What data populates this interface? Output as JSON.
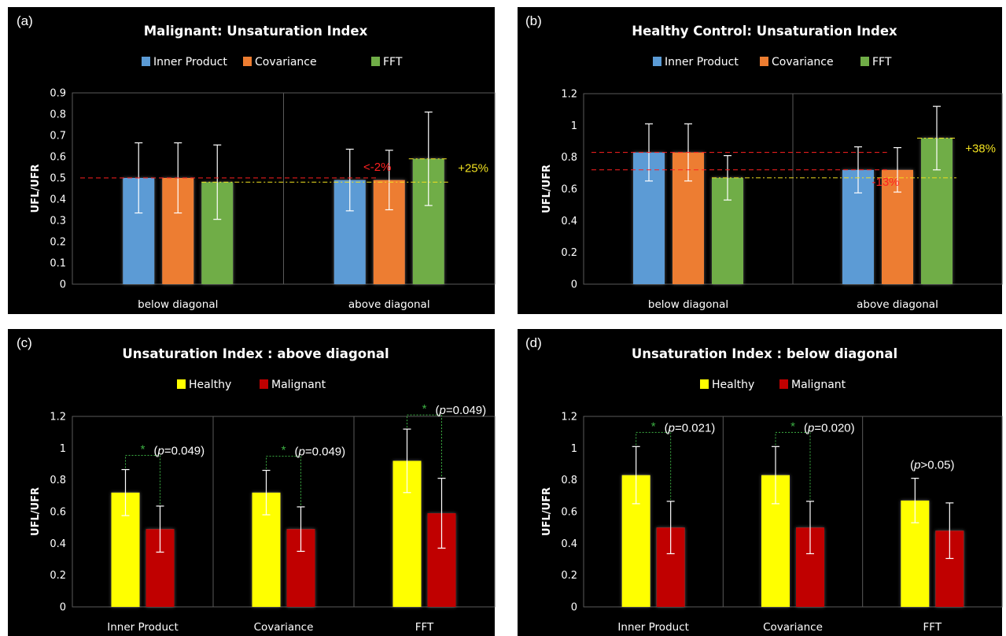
{
  "colors": {
    "inner_product": "#5b9bd5",
    "covariance": "#ed7d31",
    "fft": "#70ad47",
    "healthy": "#ffff00",
    "malignant": "#c00000",
    "background": "#000000",
    "red_annotation": "#ff2020",
    "yellow_annotation": "#f0e020",
    "significance": "#3cb043"
  },
  "panels": [
    {
      "letter": "(a)",
      "title": "Malignant:  Unsaturation Index",
      "annotations": [
        "<-2%",
        "+25%"
      ]
    },
    {
      "letter": "(b)",
      "title": "Healthy Control:  Unsaturation Index",
      "annotations": [
        "-13%",
        "+38%"
      ]
    },
    {
      "letter": "(c)",
      "title": "Unsaturation Index : above diagonal",
      "pvalues": [
        "(p=0.049)",
        "(p=0.049)",
        "(p=0.049)"
      ],
      "significance_marks": [
        "*",
        "*",
        "*"
      ]
    },
    {
      "letter": "(d)",
      "title": "Unsaturation Index : below diagonal",
      "pvalues": [
        "(p=0.021)",
        "(p=0.020)",
        "(p>0.05)"
      ],
      "significance_marks": [
        "*",
        "*"
      ]
    }
  ],
  "chart_data": [
    {
      "type": "bar",
      "title": "Malignant:  Unsaturation Index",
      "ylabel": "UFL/UFR",
      "xlabel": "",
      "ylim": [
        0,
        0.9
      ],
      "yticks": [
        "0",
        "0.1",
        "0.2",
        "0.3",
        "0.4",
        "0.5",
        "0.6",
        "0.7",
        "0.8",
        "0.9"
      ],
      "categories": [
        "below diagonal",
        "above diagonal"
      ],
      "legend_position": "top",
      "grid": "vertical separators",
      "series": [
        {
          "name": "Inner Product",
          "values": [
            0.5,
            0.49
          ],
          "errors": [
            0.165,
            0.145
          ]
        },
        {
          "name": "Covariance",
          "values": [
            0.5,
            0.49
          ],
          "errors": [
            0.165,
            0.14
          ]
        },
        {
          "name": "FFT",
          "values": [
            0.48,
            0.59
          ],
          "errors": [
            0.175,
            0.22
          ]
        }
      ]
    },
    {
      "type": "bar",
      "title": "Healthy Control:  Unsaturation Index",
      "ylabel": "UFL/UFR",
      "xlabel": "",
      "ylim": [
        0,
        1.2
      ],
      "yticks": [
        "0",
        "0.2",
        "0.4",
        "0.6",
        "0.8",
        "1",
        "1.2"
      ],
      "categories": [
        "below diagonal",
        "above diagonal"
      ],
      "legend_position": "top",
      "grid": "vertical separators",
      "series": [
        {
          "name": "Inner Product",
          "values": [
            0.83,
            0.72
          ],
          "errors": [
            0.18,
            0.145
          ]
        },
        {
          "name": "Covariance",
          "values": [
            0.83,
            0.72
          ],
          "errors": [
            0.18,
            0.14
          ]
        },
        {
          "name": "FFT",
          "values": [
            0.67,
            0.92
          ],
          "errors": [
            0.14,
            0.2
          ]
        }
      ]
    },
    {
      "type": "bar",
      "title": "Unsaturation Index : above diagonal",
      "ylabel": "UFL/UFR",
      "xlabel": "",
      "ylim": [
        0,
        1.2
      ],
      "yticks": [
        "0",
        "0.2",
        "0.4",
        "0.6",
        "0.8",
        "1",
        "1.2"
      ],
      "categories": [
        "Inner Product",
        "Covariance",
        "FFT"
      ],
      "legend_position": "top",
      "grid": "vertical separators",
      "series": [
        {
          "name": "Healthy",
          "values": [
            0.72,
            0.72,
            0.92
          ],
          "errors": [
            0.145,
            0.14,
            0.2
          ]
        },
        {
          "name": "Malignant",
          "values": [
            0.49,
            0.49,
            0.59
          ],
          "errors": [
            0.145,
            0.14,
            0.22
          ]
        }
      ]
    },
    {
      "type": "bar",
      "title": "Unsaturation Index : below diagonal",
      "ylabel": "UFL/UFR",
      "xlabel": "",
      "ylim": [
        0,
        1.2
      ],
      "yticks": [
        "0",
        "0.2",
        "0.4",
        "0.6",
        "0.8",
        "1",
        "1.2"
      ],
      "categories": [
        "Inner Product",
        "Covariance",
        "FFT"
      ],
      "legend_position": "top",
      "grid": "vertical separators",
      "series": [
        {
          "name": "Healthy",
          "values": [
            0.83,
            0.83,
            0.67
          ],
          "errors": [
            0.18,
            0.18,
            0.14
          ]
        },
        {
          "name": "Malignant",
          "values": [
            0.5,
            0.5,
            0.48
          ],
          "errors": [
            0.165,
            0.165,
            0.175
          ]
        }
      ]
    }
  ]
}
